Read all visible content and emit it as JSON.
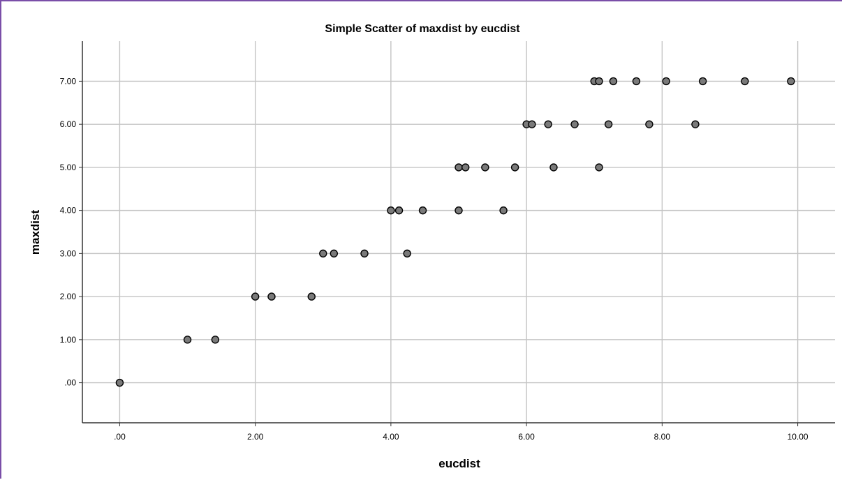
{
  "chart_data": {
    "type": "scatter",
    "title": "Simple Scatter of maxdist by eucdist",
    "xlabel": "eucdist",
    "ylabel": "maxdist",
    "xlim": [
      -0.55,
      10.55
    ],
    "ylim": [
      -0.93,
      7.93
    ],
    "x_ticks": [
      0,
      2,
      4,
      6,
      8,
      10
    ],
    "x_tick_labels": [
      ".00",
      "2.00",
      "4.00",
      "6.00",
      "8.00",
      "10.00"
    ],
    "y_ticks": [
      0,
      1,
      2,
      3,
      4,
      5,
      6,
      7
    ],
    "y_tick_labels": [
      ".00",
      "1.00",
      "2.00",
      "3.00",
      "4.00",
      "5.00",
      "6.00",
      "7.00"
    ],
    "grid": true,
    "marker_color": "#7a7a7a",
    "marker_edge_color": "#000000",
    "points": [
      {
        "x": 0.0,
        "y": 0
      },
      {
        "x": 1.0,
        "y": 1
      },
      {
        "x": 1.41,
        "y": 1
      },
      {
        "x": 2.0,
        "y": 2
      },
      {
        "x": 2.24,
        "y": 2
      },
      {
        "x": 2.83,
        "y": 2
      },
      {
        "x": 3.0,
        "y": 3
      },
      {
        "x": 3.16,
        "y": 3
      },
      {
        "x": 3.61,
        "y": 3
      },
      {
        "x": 4.24,
        "y": 3
      },
      {
        "x": 4.0,
        "y": 4
      },
      {
        "x": 4.12,
        "y": 4
      },
      {
        "x": 4.47,
        "y": 4
      },
      {
        "x": 5.0,
        "y": 4
      },
      {
        "x": 5.66,
        "y": 4
      },
      {
        "x": 5.0,
        "y": 5
      },
      {
        "x": 5.1,
        "y": 5
      },
      {
        "x": 5.39,
        "y": 5
      },
      {
        "x": 5.83,
        "y": 5
      },
      {
        "x": 6.4,
        "y": 5
      },
      {
        "x": 7.07,
        "y": 5
      },
      {
        "x": 6.0,
        "y": 6
      },
      {
        "x": 6.08,
        "y": 6
      },
      {
        "x": 6.32,
        "y": 6
      },
      {
        "x": 6.71,
        "y": 6
      },
      {
        "x": 7.21,
        "y": 6
      },
      {
        "x": 7.81,
        "y": 6
      },
      {
        "x": 8.49,
        "y": 6
      },
      {
        "x": 7.0,
        "y": 7
      },
      {
        "x": 7.07,
        "y": 7
      },
      {
        "x": 7.28,
        "y": 7
      },
      {
        "x": 7.62,
        "y": 7
      },
      {
        "x": 8.06,
        "y": 7
      },
      {
        "x": 8.6,
        "y": 7
      },
      {
        "x": 9.22,
        "y": 7
      },
      {
        "x": 9.9,
        "y": 7
      }
    ]
  }
}
